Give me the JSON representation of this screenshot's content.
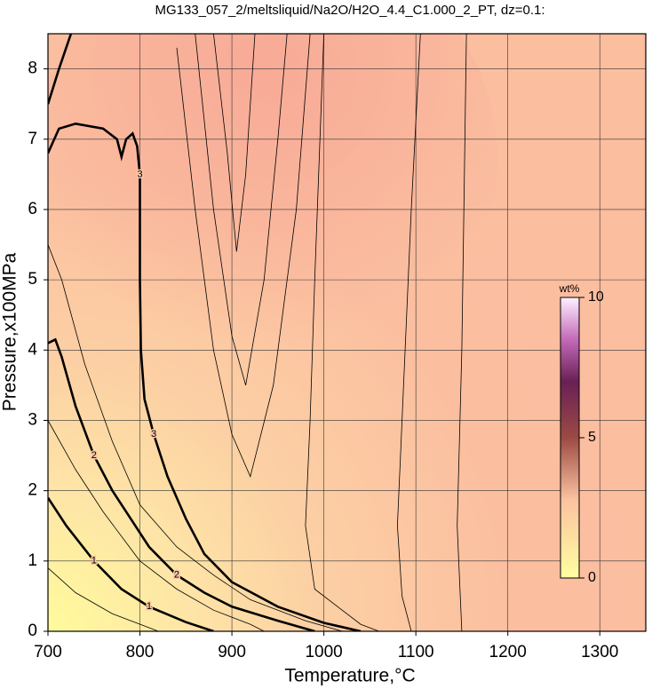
{
  "chart_data": {
    "type": "contour",
    "title": "MG133_057_2/meltsliquid/Na2O/H2O_4.4_C1.000_2_PT, dz=0.1:",
    "x_label": "Temperature,°C",
    "y_label": "Pressure,x100MPa",
    "xlim": [
      700,
      1350
    ],
    "ylim": [
      0,
      8.5
    ],
    "xticks": [
      700,
      800,
      900,
      1000,
      1100,
      1200,
      1300
    ],
    "yticks": [
      0,
      1,
      2,
      3,
      4,
      5,
      6,
      7,
      8
    ],
    "grid": true,
    "line_color": "#000000",
    "colorbar": {
      "label": "wt%",
      "lim": [
        0,
        10
      ],
      "ticks": [
        0,
        5,
        10
      ]
    },
    "contours": [
      {
        "level": 1,
        "thick": true,
        "x": [
          700,
          720,
          750,
          780,
          810,
          850,
          880
        ],
        "y": [
          1.9,
          1.5,
          1.0,
          0.6,
          0.35,
          0.13,
          0.0
        ]
      },
      {
        "level": 2,
        "thick": true,
        "x": [
          700,
          708,
          715,
          730,
          750,
          770,
          790,
          810,
          840,
          870,
          900,
          950,
          990
        ],
        "y": [
          4.1,
          4.15,
          3.9,
          3.2,
          2.5,
          2.0,
          1.6,
          1.2,
          0.8,
          0.55,
          0.35,
          0.15,
          0.0
        ]
      },
      {
        "level": 3,
        "thick": true,
        "x": [
          700,
          712,
          730,
          760,
          775,
          780,
          785,
          792,
          797,
          800,
          800,
          801,
          805,
          815,
          830,
          850,
          870,
          900,
          950,
          1000,
          1040
        ],
        "y": [
          6.8,
          7.15,
          7.22,
          7.15,
          7.0,
          6.75,
          7.0,
          7.08,
          6.9,
          6.5,
          5.0,
          4.0,
          3.3,
          2.8,
          2.2,
          1.6,
          1.1,
          0.7,
          0.35,
          0.12,
          0.0
        ]
      },
      {
        "level": 4,
        "thick": true,
        "x": [
          700,
          712,
          725
        ],
        "y": [
          7.5,
          8.0,
          8.5
        ]
      },
      {
        "level": 0.5,
        "thick": false,
        "x": [
          700,
          730,
          770,
          810,
          820
        ],
        "y": [
          0.9,
          0.55,
          0.25,
          0.05,
          0.0
        ]
      },
      {
        "level": 1.5,
        "thick": false,
        "x": [
          700,
          730,
          760,
          800,
          840,
          880,
          920,
          935
        ],
        "y": [
          3.0,
          2.3,
          1.7,
          1.0,
          0.6,
          0.3,
          0.1,
          0.0
        ]
      },
      {
        "level": 2.5,
        "thick": false,
        "x": [
          700,
          715,
          740,
          770,
          800,
          840,
          880,
          920,
          980,
          1020
        ],
        "y": [
          5.5,
          5.0,
          3.8,
          2.7,
          1.8,
          1.2,
          0.8,
          0.45,
          0.15,
          0.0
        ]
      },
      {
        "level": 3.2,
        "thick": false,
        "x": [
          840,
          860,
          880,
          900,
          920,
          945,
          970,
          985
        ],
        "y": [
          8.3,
          6.0,
          4.0,
          2.8,
          2.2,
          3.5,
          6.0,
          8.5
        ]
      },
      {
        "level": 3.3,
        "thick": false,
        "x": [
          860,
          880,
          900,
          915,
          935,
          950,
          960
        ],
        "y": [
          8.5,
          6.0,
          4.2,
          3.5,
          5.0,
          7.0,
          8.5
        ]
      },
      {
        "level": 3.4,
        "thick": false,
        "x": [
          880,
          895,
          905,
          915,
          925
        ],
        "y": [
          8.5,
          6.8,
          5.4,
          6.5,
          8.5
        ]
      },
      {
        "level": 3.1,
        "thick": false,
        "x": [
          1000,
          990,
          985,
          980,
          990,
          1040,
          1060
        ],
        "y": [
          8.5,
          5.0,
          3.0,
          1.5,
          0.6,
          0.1,
          0.0
        ]
      },
      {
        "level": 3.05,
        "thick": false,
        "x": [
          1105,
          1095,
          1085,
          1080,
          1085,
          1095
        ],
        "y": [
          8.5,
          6.0,
          3.0,
          1.5,
          0.5,
          0.0
        ]
      },
      {
        "level": 3.0,
        "thick": false,
        "x": [
          1155,
          1150,
          1145,
          1150
        ],
        "y": [
          8.5,
          4.0,
          1.5,
          0.0
        ]
      }
    ]
  }
}
